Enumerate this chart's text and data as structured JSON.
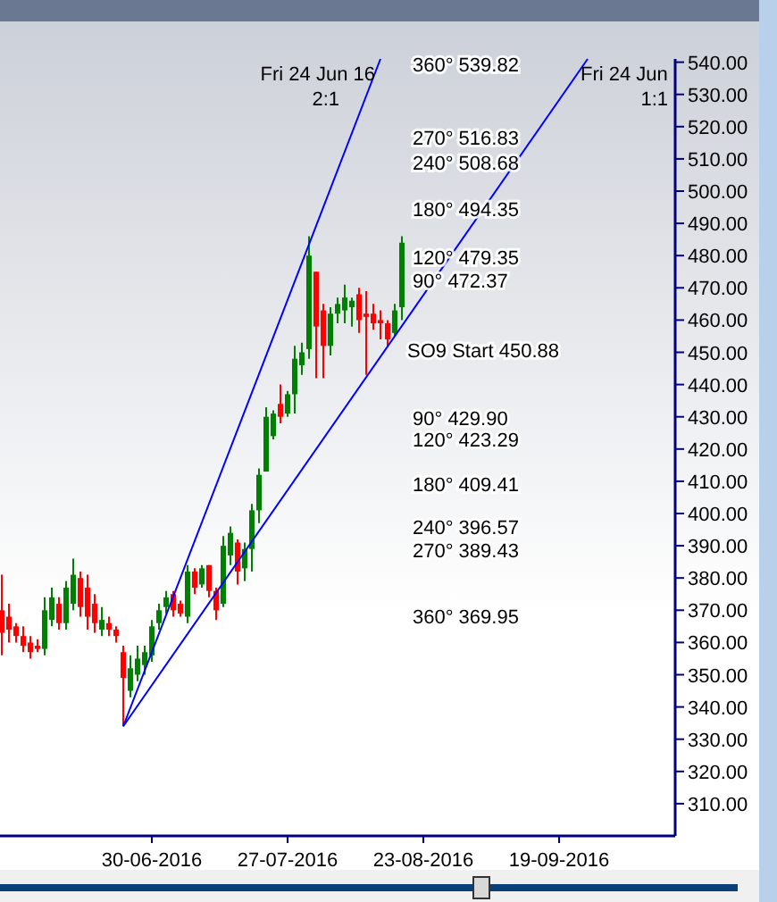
{
  "chart_data": {
    "type": "candlestick",
    "categories": [
      null,
      null,
      null,
      null,
      null,
      null,
      null,
      null,
      null,
      null,
      null,
      null,
      null,
      null,
      null,
      null,
      null,
      null,
      null,
      null,
      null,
      "30-06-2016",
      null,
      null,
      null,
      null,
      null,
      null,
      null,
      null,
      null,
      null,
      null,
      null,
      null,
      null,
      null,
      null,
      null,
      null,
      "27-07-2016",
      null,
      null,
      null,
      null,
      null,
      null,
      null,
      null,
      null,
      null,
      null,
      null,
      null,
      null,
      null,
      null,
      null,
      null,
      "23-08-2016",
      null,
      null,
      null,
      null,
      null,
      null,
      null,
      null,
      null,
      null,
      null,
      null,
      null,
      null,
      null,
      null,
      null,
      null,
      "19-09-2016",
      null,
      null,
      null,
      null,
      null,
      null,
      null,
      null,
      null,
      null,
      null,
      null,
      null,
      null,
      null,
      null
    ],
    "ohlc": [
      [
        370,
        381,
        356,
        363
      ],
      [
        368,
        372,
        360,
        364
      ],
      [
        365,
        366,
        360,
        362
      ],
      [
        362,
        365,
        357,
        359
      ],
      [
        360,
        362,
        355,
        357
      ],
      [
        359,
        361,
        357,
        358
      ],
      [
        358,
        374,
        356,
        370
      ],
      [
        367,
        377,
        365,
        374
      ],
      [
        372,
        374,
        364,
        366
      ],
      [
        366,
        379,
        364,
        377
      ],
      [
        372,
        386,
        370,
        381
      ],
      [
        380,
        382,
        368,
        371
      ],
      [
        377,
        381,
        364,
        368
      ],
      [
        372,
        375,
        363,
        366
      ],
      [
        364,
        371,
        362,
        367
      ],
      [
        366,
        368,
        362,
        364
      ],
      [
        364,
        365,
        360,
        362
      ],
      [
        357,
        359,
        334,
        349
      ],
      [
        345,
        356,
        343,
        352
      ],
      [
        350,
        359,
        348,
        355
      ],
      [
        353,
        359,
        350,
        357
      ],
      [
        356,
        367,
        354,
        365
      ],
      [
        366,
        372,
        364,
        370
      ],
      [
        371,
        376,
        369,
        374
      ],
      [
        375,
        376,
        368,
        370
      ],
      [
        372,
        373,
        368,
        369
      ],
      [
        368,
        384,
        366,
        382
      ],
      [
        382,
        383,
        375,
        377
      ],
      [
        378,
        384,
        377,
        383
      ],
      [
        384,
        384,
        374,
        376
      ],
      [
        376,
        377,
        367,
        370
      ],
      [
        372,
        393,
        371,
        390
      ],
      [
        387,
        396,
        384,
        394
      ],
      [
        391,
        392,
        378,
        382
      ],
      [
        383,
        391,
        379,
        389
      ],
      [
        389,
        403,
        382,
        401
      ],
      [
        401,
        414,
        397,
        412
      ],
      [
        413,
        433,
        413,
        430
      ],
      [
        424,
        432,
        423,
        431
      ],
      [
        434,
        440,
        428,
        430
      ],
      [
        431,
        438,
        430,
        437
      ],
      [
        437,
        452,
        431,
        448
      ],
      [
        446,
        453,
        443,
        450
      ],
      [
        451,
        486,
        448,
        480
      ],
      [
        475,
        475,
        442,
        458
      ],
      [
        463,
        465,
        442,
        452
      ],
      [
        452,
        464,
        449,
        462
      ],
      [
        462,
        467,
        459,
        465
      ],
      [
        463,
        471,
        459,
        467
      ],
      [
        464,
        467,
        458,
        466
      ],
      [
        468,
        470,
        456,
        460
      ],
      [
        462,
        469,
        443,
        461
      ],
      [
        462,
        465,
        457,
        459
      ],
      [
        460,
        463,
        454,
        459
      ],
      [
        459,
        460,
        452,
        454
      ],
      [
        456,
        465,
        455,
        463
      ],
      [
        464,
        486,
        460,
        484
      ],
      null,
      null,
      null,
      null,
      null,
      null,
      null,
      null,
      null,
      null,
      null,
      null,
      null,
      null,
      null,
      null,
      null,
      null,
      null,
      null,
      null,
      null,
      null,
      null,
      null,
      null,
      null,
      null,
      null,
      null,
      null,
      null,
      null,
      null,
      null,
      null,
      null,
      null
    ],
    "colors": [
      "#ff0000",
      "#ff0000",
      "#ff0000",
      "#ff0000",
      "#ff0000",
      "#ff0000",
      "#008000",
      "#008000",
      "#ff0000",
      "#008000",
      "#008000",
      "#ff0000",
      "#ff0000",
      "#ff0000",
      "#008000",
      "#ff0000",
      "#ff0000",
      "#ff0000",
      "#008000",
      "#008000",
      "#008000",
      "#008000",
      "#008000",
      "#008000",
      "#ff0000",
      "#ff0000",
      "#008000",
      "#ff0000",
      "#008000",
      "#ff0000",
      "#ff0000",
      "#008000",
      "#008000",
      "#ff0000",
      "#008000",
      "#008000",
      "#008000",
      "#008000",
      "#008000",
      "#ff0000",
      "#008000",
      "#008000",
      "#008000",
      "#008000",
      "#ff0000",
      "#ff0000",
      "#008000",
      "#008000",
      "#008000",
      "#008000",
      "#ff0000",
      "#ff0000",
      "#ff0000",
      "#ff0000",
      "#ff0000",
      "#008000",
      "#008000",
      null,
      null,
      null,
      null,
      null,
      null,
      null,
      null,
      null,
      null,
      null,
      null,
      null,
      null,
      null,
      null,
      null,
      null,
      null,
      null,
      null,
      null,
      null,
      null,
      null,
      null,
      null,
      null,
      null,
      null,
      null,
      null,
      null,
      null,
      null,
      null,
      null,
      null
    ],
    "series": [
      {
        "type": "line",
        "name": "Fri 24 Jun 16",
        "color": "#0000ff",
        "values": [
          null,
          null,
          null,
          null,
          null,
          null,
          null,
          null,
          null,
          null,
          null,
          null,
          null,
          null,
          null,
          null,
          null,
          334,
          null,
          null,
          null,
          null,
          null,
          null,
          null,
          null,
          null,
          null,
          null,
          null,
          null,
          null,
          null,
          null,
          null,
          null,
          null,
          null,
          null,
          null,
          null,
          null,
          null,
          null,
          null,
          null,
          null,
          null,
          null,
          null,
          null,
          null,
          null,
          541,
          null,
          null,
          null,
          null,
          null,
          null,
          null,
          null,
          null,
          null,
          null,
          null,
          null,
          null,
          null,
          null,
          null,
          null,
          null,
          null,
          null,
          null,
          null,
          null,
          null,
          null,
          null,
          null,
          null,
          null,
          null,
          null,
          null,
          null,
          null,
          null,
          null,
          null,
          null,
          null,
          null
        ]
      },
      {
        "type": "line",
        "name": "Fri 24 Jun",
        "color": "#0000ff",
        "values": [
          null,
          null,
          null,
          null,
          null,
          null,
          null,
          null,
          null,
          null,
          null,
          null,
          null,
          null,
          null,
          null,
          null,
          334,
          null,
          null,
          null,
          null,
          null,
          null,
          null,
          null,
          null,
          null,
          null,
          null,
          null,
          null,
          null,
          null,
          null,
          null,
          null,
          null,
          null,
          null,
          null,
          null,
          null,
          null,
          null,
          null,
          null,
          null,
          null,
          null,
          null,
          null,
          null,
          null,
          null,
          null,
          null,
          null,
          null,
          null,
          null,
          null,
          null,
          null,
          null,
          null,
          null,
          null,
          null,
          null,
          null,
          null,
          null,
          null,
          null,
          null,
          null,
          null,
          null,
          null,
          null,
          null,
          541,
          null,
          null,
          null,
          null,
          null,
          null,
          null,
          null,
          null,
          null,
          null,
          null
        ]
      }
    ],
    "ylim": [
      300,
      541
    ],
    "yticks": [
      {
        "value": 540,
        "label": "540.00"
      },
      {
        "value": 530,
        "label": "530.00"
      },
      {
        "value": 520,
        "label": "520.00"
      },
      {
        "value": 510,
        "label": "510.00"
      },
      {
        "value": 500,
        "label": "500.00"
      },
      {
        "value": 490,
        "label": "490.00"
      },
      {
        "value": 480,
        "label": "480.00"
      },
      {
        "value": 470,
        "label": "470.00"
      },
      {
        "value": 460,
        "label": "460.00"
      },
      {
        "value": 450,
        "label": "450.00"
      },
      {
        "value": 440,
        "label": "440.00"
      },
      {
        "value": 430,
        "label": "430.00"
      },
      {
        "value": 420,
        "label": "420.00"
      },
      {
        "value": 410,
        "label": "410.00"
      },
      {
        "value": 400,
        "label": "400.00"
      },
      {
        "value": 390,
        "label": "390.00"
      },
      {
        "value": 380,
        "label": "380.00"
      },
      {
        "value": 370,
        "label": "370.00"
      },
      {
        "value": 360,
        "label": "360.00"
      },
      {
        "value": 350,
        "label": "350.00"
      },
      {
        "value": 340,
        "label": "340.00"
      },
      {
        "value": 330,
        "label": "330.00"
      },
      {
        "value": 320,
        "label": "320.00"
      },
      {
        "value": 310,
        "label": "310.00"
      }
    ],
    "annotations": [
      "2:1",
      "1:1",
      "360° 539.82",
      "270° 516.83",
      "240° 508.68",
      "180° 494.35",
      "120° 479.35",
      "90° 472.37",
      "SO9 Start 450.88",
      "90° 429.90",
      "120° 423.29",
      "180° 409.41",
      "240° 396.57",
      "270° 389.43",
      "360° 369.95"
    ],
    "grid": false
  }
}
